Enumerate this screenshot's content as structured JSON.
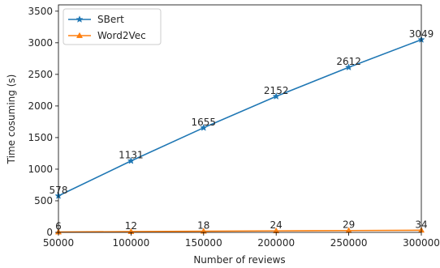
{
  "chart_data": {
    "type": "line",
    "title": "",
    "xlabel": "Number of reviews",
    "ylabel": "Time cosuming (s)",
    "x": [
      50000,
      100000,
      150000,
      200000,
      250000,
      300000
    ],
    "xlim": [
      50000,
      300000
    ],
    "ylim": [
      0,
      3600
    ],
    "xticks": [
      50000,
      100000,
      150000,
      200000,
      250000,
      300000
    ],
    "yticks": [
      0,
      500,
      1000,
      1500,
      2000,
      2500,
      3000,
      3500
    ],
    "grid": false,
    "legend_position": "top-left",
    "series": [
      {
        "name": "SBert",
        "values": [
          578,
          1131,
          1655,
          2152,
          2612,
          3049
        ],
        "color": "#1f77b4",
        "marker": "star"
      },
      {
        "name": "Word2Vec",
        "values": [
          6,
          12,
          18,
          24,
          29,
          34
        ],
        "color": "#ff7f0e",
        "marker": "triangle"
      }
    ]
  }
}
